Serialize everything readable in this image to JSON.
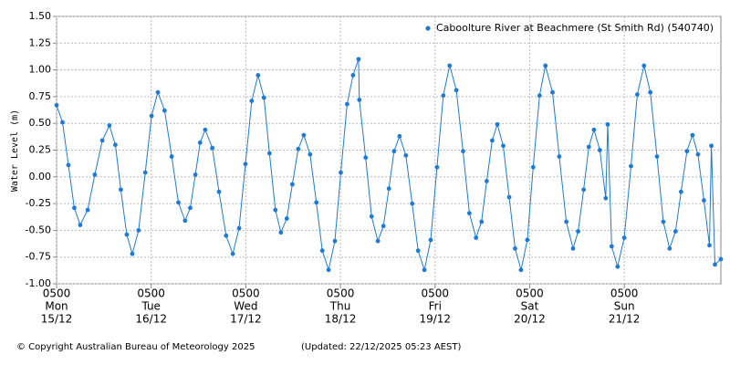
{
  "chart_data": {
    "type": "line",
    "ylabel": "Water Level (m)",
    "series": [
      {
        "name": "Caboolture River at Beachmere (St Smith Rd) (540740)",
        "color": "#1f7ad6",
        "x": [
          0,
          1.5,
          3,
          4.5,
          6,
          7.9,
          9.7,
          11.6,
          13.4,
          14.9,
          16.3,
          17.8,
          19.2,
          20.8,
          22.5,
          24.1,
          25.7,
          27.4,
          29.2,
          30.9,
          32.6,
          33.9,
          35.2,
          36.4,
          37.7,
          39.5,
          41.2,
          43,
          44.7,
          46.3,
          47.9,
          49.5,
          51.1,
          52.6,
          54,
          55.5,
          56.9,
          58.4,
          59.8,
          61.3,
          62.7,
          64.3,
          65.9,
          67.4,
          69,
          70.6,
          72.1,
          73.7,
          75.2,
          76.6,
          76.8,
          78.4,
          79.9,
          81.5,
          82.9,
          84.3,
          85.6,
          87,
          88.6,
          90.2,
          91.7,
          93.3,
          94.9,
          96.5,
          98.1,
          99.7,
          101.4,
          103.1,
          104.7,
          106.4,
          107.8,
          109.1,
          110.5,
          111.8,
          113.3,
          114.8,
          116.3,
          117.8,
          119.4,
          120.9,
          122.5,
          124,
          125.8,
          127.5,
          129.3,
          131,
          132.3,
          133.7,
          135,
          136.3,
          137.8,
          139.3,
          139.8,
          140.8,
          142.3,
          144,
          145.7,
          147.3,
          149,
          150.6,
          152.3,
          153.9,
          155.5,
          157,
          158.4,
          159.9,
          161.3,
          162.7,
          164.2,
          165.6,
          166.1,
          167,
          168.5
        ],
        "values": [
          0.67,
          0.51,
          0.11,
          -0.29,
          -0.45,
          -0.31,
          0.02,
          0.34,
          0.48,
          0.3,
          -0.12,
          -0.54,
          -0.72,
          -0.5,
          0.04,
          0.57,
          0.79,
          0.62,
          0.19,
          -0.24,
          -0.41,
          -0.29,
          0.02,
          0.32,
          0.44,
          0.27,
          -0.14,
          -0.55,
          -0.72,
          -0.48,
          0.12,
          0.71,
          0.95,
          0.74,
          0.22,
          -0.31,
          -0.52,
          -0.39,
          -0.07,
          0.26,
          0.39,
          0.21,
          -0.24,
          -0.69,
          -0.87,
          -0.6,
          0.04,
          0.68,
          0.95,
          1.1,
          0.72,
          0.18,
          -0.37,
          -0.6,
          -0.46,
          -0.11,
          0.24,
          0.38,
          0.2,
          -0.25,
          -0.69,
          -0.87,
          -0.59,
          0.09,
          0.76,
          1.04,
          0.81,
          0.24,
          -0.34,
          -0.57,
          -0.42,
          -0.04,
          0.34,
          0.49,
          0.29,
          -0.19,
          -0.67,
          -0.87,
          -0.59,
          0.09,
          0.76,
          1.04,
          0.79,
          0.19,
          -0.42,
          -0.67,
          -0.51,
          -0.12,
          0.28,
          0.44,
          0.25,
          -0.2,
          0.49,
          -0.65,
          -0.84,
          -0.57,
          0.1,
          0.77,
          1.04,
          0.79,
          0.19,
          -0.42,
          -0.67,
          -0.51,
          -0.14,
          0.24,
          0.39,
          0.21,
          -0.22,
          -0.64,
          0.29,
          -0.82,
          -0.77
        ]
      }
    ],
    "xlim": [
      0,
      168.5
    ],
    "xticks": [
      {
        "value": 0,
        "label": [
          "0500",
          "Mon",
          "15/12"
        ]
      },
      {
        "value": 24,
        "label": [
          "0500",
          "Tue",
          "16/12"
        ]
      },
      {
        "value": 48,
        "label": [
          "0500",
          "Wed",
          "17/12"
        ]
      },
      {
        "value": 72,
        "label": [
          "0500",
          "Thu",
          "18/12"
        ]
      },
      {
        "value": 96,
        "label": [
          "0500",
          "Fri",
          "19/12"
        ]
      },
      {
        "value": 120,
        "label": [
          "0500",
          "Sat",
          "20/12"
        ]
      },
      {
        "value": 144,
        "label": [
          "0500",
          "Sun",
          "21/12"
        ]
      }
    ],
    "ylim": [
      -1,
      1.5
    ],
    "yticks": [
      {
        "value": 1.5,
        "label": "1.50"
      },
      1.25,
      {
        "value": 1,
        "label": "1.00"
      },
      0.75,
      {
        "value": 0.5,
        "label": "0.50"
      },
      0.25,
      {
        "value": 0,
        "label": "0.00"
      },
      -0.25,
      {
        "value": -0.5,
        "label": "-0.50"
      },
      -0.75,
      {
        "value": -1,
        "label": "-1.00"
      }
    ],
    "grid": true,
    "legend": "top-right",
    "footer_left": "© Copyright Australian Bureau of Meteorology 2025",
    "footer_right": "(Updated: 22/12/2025 05:23 AEST)"
  }
}
